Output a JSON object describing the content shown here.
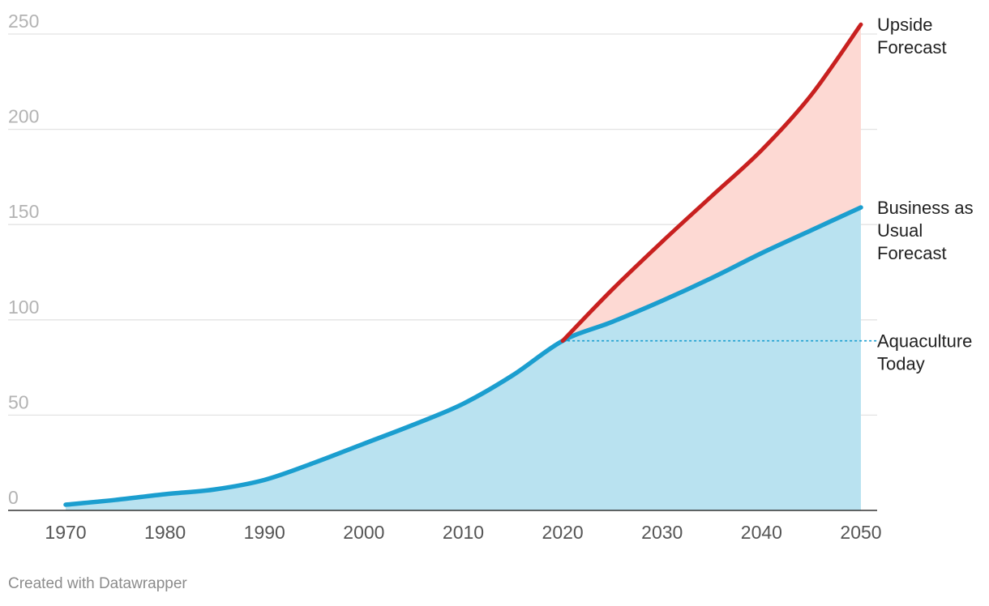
{
  "chart_data": {
    "type": "area",
    "x": [
      1970,
      1975,
      1980,
      1985,
      1990,
      1995,
      2000,
      2005,
      2010,
      2015,
      2020,
      2025,
      2030,
      2035,
      2040,
      2045,
      2050
    ],
    "x_ticks": [
      "1970",
      "1980",
      "1990",
      "2000",
      "2010",
      "2020",
      "2030",
      "2040",
      "2050"
    ],
    "y_ticks": [
      "0",
      "50",
      "100",
      "150",
      "200",
      "250"
    ],
    "ylim": [
      0,
      250
    ],
    "xlim": [
      1970,
      2050
    ],
    "grid": true,
    "series": [
      {
        "name": "Business as Usual Forecast",
        "color": "#1b9ecf",
        "fill": "#b9e2f0",
        "x": [
          1970,
          1975,
          1980,
          1985,
          1990,
          1995,
          2000,
          2005,
          2010,
          2015,
          2020,
          2025,
          2030,
          2035,
          2040,
          2045,
          2050
        ],
        "values": [
          3,
          5.5,
          8.5,
          11,
          16,
          25,
          35,
          45,
          56,
          71,
          89,
          99,
          110,
          122,
          135,
          147,
          159
        ]
      },
      {
        "name": "Upside Forecast",
        "color": "#c8201f",
        "fill": "#fdd9d3",
        "x": [
          2020,
          2025,
          2030,
          2035,
          2040,
          2045,
          2050
        ],
        "values": [
          89,
          116,
          141,
          165,
          189,
          218,
          255
        ]
      }
    ],
    "reference_line": {
      "name": "Aquaculture Today",
      "value": 89,
      "from_x": 2020,
      "color": "#1b9ecf",
      "style": "dotted"
    },
    "labels": {
      "upside": [
        "Upside",
        "Forecast"
      ],
      "bau": [
        "Business as",
        "Usual",
        "Forecast"
      ],
      "today": [
        "Aquaculture",
        "Today"
      ]
    }
  },
  "footer": "Created with Datawrapper"
}
